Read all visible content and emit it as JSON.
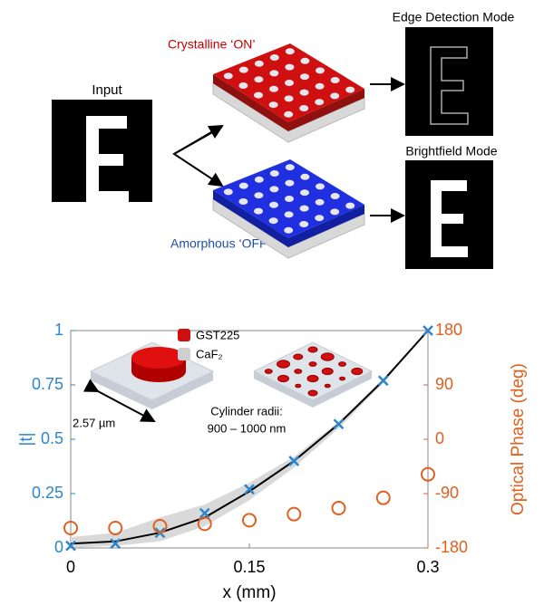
{
  "diagram": {
    "input_label": "Input",
    "on_label": "Crystalline ‘ON’",
    "off_label": "Amorphous ‘OFF’",
    "edge_label": "Edge Detection Mode",
    "bright_label": "Brightfield Mode"
  },
  "chart_data": {
    "type": "line",
    "xlabel": "x (mm)",
    "ylabel": "|t|",
    "y2label": "Optical Phase (deg)",
    "x": [
      0,
      0.0375,
      0.075,
      0.1125,
      0.15,
      0.1875,
      0.225,
      0.2625,
      0.3
    ],
    "xlim": [
      0,
      0.3
    ],
    "xticks": [
      0,
      0.15,
      0.3
    ],
    "ylim": [
      0,
      1
    ],
    "yticks": [
      0,
      0.25,
      0.5,
      0.75,
      1
    ],
    "y2lim": [
      -180,
      180
    ],
    "y2ticks": [
      -180,
      -90,
      0,
      90,
      180
    ],
    "series": [
      {
        "color": "#2e86c8",
        "marker": "x",
        "values": [
          0.01,
          0.02,
          0.07,
          0.16,
          0.27,
          0.4,
          0.57,
          0.77,
          1.0
        ]
      },
      {
        "color": "#e0601f",
        "marker": "o",
        "axis": "y2",
        "values": [
          -147,
          -147,
          -144,
          -140,
          -134,
          -124,
          -114,
          -97,
          -58
        ]
      }
    ],
    "fit": {
      "color": "#000000",
      "values": [
        0.02,
        0.03,
        0.07,
        0.14,
        0.26,
        0.4,
        0.57,
        0.77,
        1.0
      ]
    },
    "band": {
      "color": "#d9d9d9",
      "lower": [
        0.0,
        0.01,
        0.03,
        0.1,
        0.22,
        0.37,
        0.55,
        0.76,
        1.0
      ],
      "upper": [
        0.05,
        0.07,
        0.14,
        0.2,
        0.3,
        0.42,
        0.58,
        0.78,
        1.0
      ]
    },
    "annotations": {
      "materials": [
        "GST225",
        "CaF₂"
      ],
      "cell_size": "2.57 µm",
      "radii_label": "Cylinder radii:",
      "radii_range": "900 – 1000 nm"
    }
  }
}
